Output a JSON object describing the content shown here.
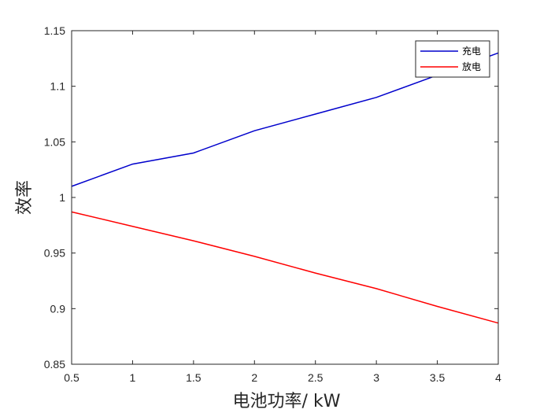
{
  "chart_data": {
    "type": "line",
    "xlabel": "电池功率/ kW",
    "ylabel": "效率",
    "xlim": [
      0.5,
      4
    ],
    "ylim": [
      0.85,
      1.15
    ],
    "xticks": [
      0.5,
      1,
      1.5,
      2,
      2.5,
      3,
      3.5,
      4
    ],
    "xtick_labels": [
      "0.5",
      "1",
      "1.5",
      "2",
      "2.5",
      "3",
      "3.5",
      "4"
    ],
    "yticks": [
      0.85,
      0.9,
      0.95,
      1,
      1.05,
      1.1,
      1.15
    ],
    "ytick_labels": [
      "0.85",
      "0.9",
      "0.95",
      "1",
      "1.05",
      "1.1",
      "1.15"
    ],
    "grid": false,
    "legend_position": "top-right",
    "x": [
      0.5,
      1,
      1.5,
      2,
      2.5,
      3,
      3.5,
      4
    ],
    "series": [
      {
        "name": "充电",
        "color": "#0000cc",
        "values": [
          1.01,
          1.03,
          1.04,
          1.06,
          1.075,
          1.09,
          1.11,
          1.13
        ]
      },
      {
        "name": "放电",
        "color": "#ff0000",
        "values": [
          0.987,
          0.974,
          0.961,
          0.947,
          0.932,
          0.918,
          0.902,
          0.887
        ]
      }
    ]
  }
}
